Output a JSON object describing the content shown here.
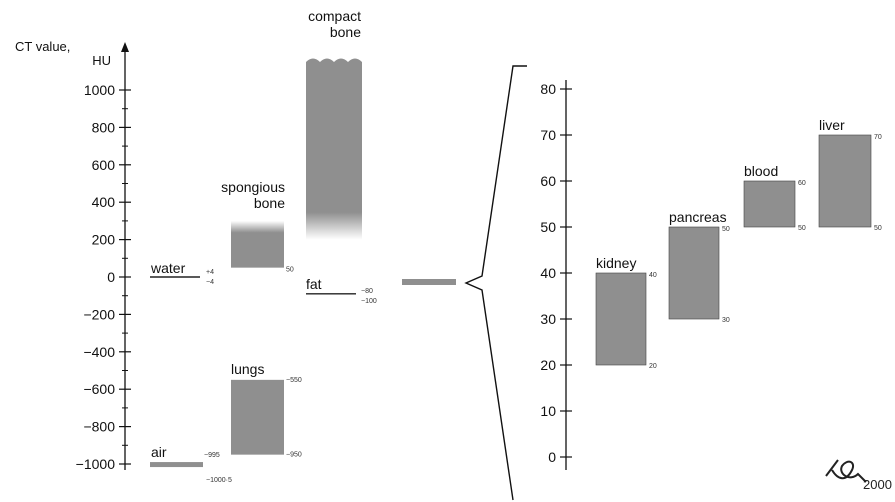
{
  "chart_data": {
    "type": "bar",
    "colors": {
      "bar": "#8f8f8f",
      "axis": "#111111",
      "text": "#111111"
    },
    "panels": [
      {
        "name": "full",
        "ylabel": "CT  value,\nHU",
        "ylim": [
          -1000,
          1000
        ],
        "ticks": [
          -1000,
          -800,
          -600,
          -400,
          -200,
          0,
          200,
          400,
          600,
          800,
          1000
        ],
        "tick_labels": [
          "−1000",
          "−800",
          "−600",
          "−400",
          "−200",
          "0",
          "200",
          "400",
          "600",
          "800",
          "1000"
        ],
        "tissues": [
          {
            "label": "air",
            "low": -1000,
            "high": -995,
            "low_label": "−1000·5",
            "high_label": "−995",
            "style": "line"
          },
          {
            "label": "lungs",
            "low": -950,
            "high": -550,
            "low_label": "−950",
            "high_label": "−550",
            "style": "bar"
          },
          {
            "label": "water",
            "low": -4,
            "high": 4,
            "low_label": "−4",
            "high_label": "+4",
            "style": "line"
          },
          {
            "label": "spongious\nbone",
            "low": 50,
            "high": 300,
            "low_label": "50",
            "high_label": "",
            "style": "bar-fade"
          },
          {
            "label": "fat",
            "low": -100,
            "high": -80,
            "low_label": "−100",
            "high_label": "−80",
            "style": "line"
          },
          {
            "label": "compact\nbone",
            "low": 200,
            "high": 1150,
            "low_label": "",
            "high_label": "",
            "style": "bar-fade-wavy"
          }
        ]
      },
      {
        "name": "zoom",
        "ylim": [
          0,
          80
        ],
        "ticks": [
          0,
          10,
          20,
          30,
          40,
          50,
          60,
          70,
          80
        ],
        "tick_labels": [
          "0",
          "10",
          "20",
          "30",
          "40",
          "50",
          "60",
          "70",
          "80"
        ],
        "tissues": [
          {
            "label": "kidney",
            "low": 20,
            "high": 40,
            "low_label": "20",
            "high_label": "40"
          },
          {
            "label": "pancreas",
            "low": 30,
            "high": 50,
            "low_label": "30",
            "high_label": "50"
          },
          {
            "label": "blood",
            "low": 50,
            "high": 60,
            "low_label": "50",
            "high_label": "60"
          },
          {
            "label": "liver",
            "low": 50,
            "high": 70,
            "low_label": "50",
            "high_label": "70"
          }
        ]
      }
    ],
    "signature_year": "2000"
  }
}
